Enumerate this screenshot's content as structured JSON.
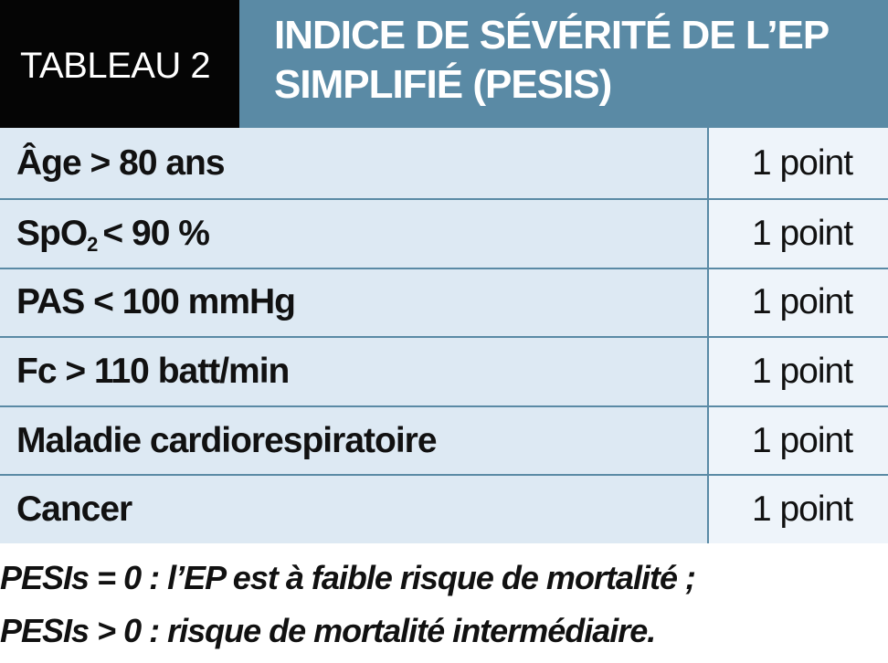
{
  "header": {
    "tag": "TABLEAU 2",
    "title_line1": "INDICE DE SÉVÉRITÉ DE L’EP",
    "title_line2": "SIMPLIFIÉ (PESIS)"
  },
  "rows": [
    {
      "label": "Âge > 80 ans",
      "value": "1 point"
    },
    {
      "label_main": "SpO",
      "label_sub": "2",
      "label_rest": "< 90 %",
      "value": "1 point"
    },
    {
      "label": "PAS < 100 mmHg",
      "value": "1 point"
    },
    {
      "label": "Fc > 110 batt/min",
      "value": "1 point"
    },
    {
      "label": "Maladie cardiorespiratoire",
      "value": "1 point"
    },
    {
      "label": "Cancer",
      "value": "1 point"
    }
  ],
  "footnote": {
    "line1": "PESIs = 0 : l’EP est à faible risque de mortalité ;",
    "line2": "PESIs > 0 : risque de mortalité intermédiaire."
  },
  "colors": {
    "header_bg": "#5a8aa5",
    "tag_bg": "#050505",
    "row_label_bg": "#dde9f3",
    "row_value_bg": "#eef4fa"
  }
}
